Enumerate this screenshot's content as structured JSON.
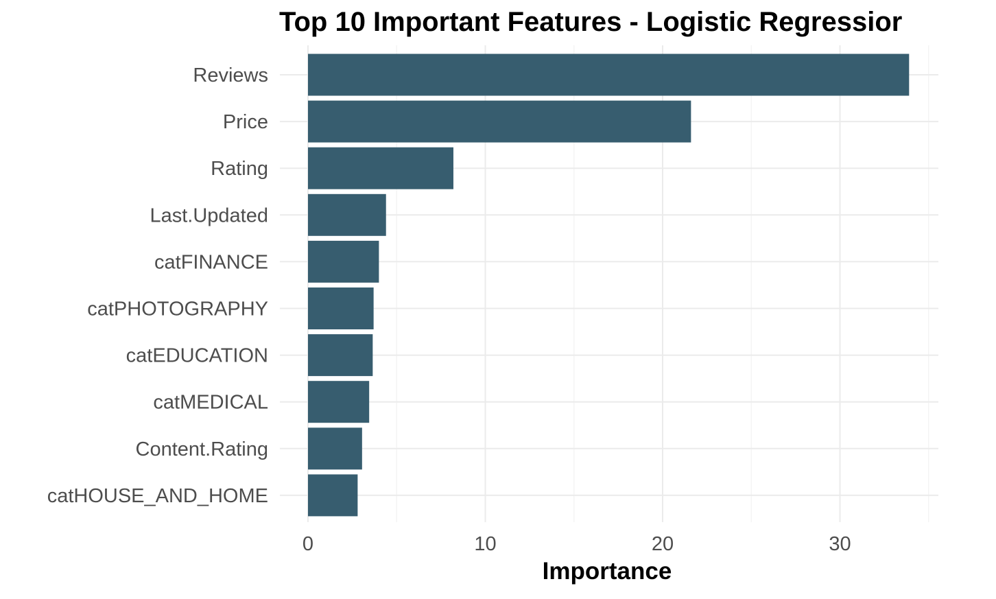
{
  "chart_data": {
    "type": "bar",
    "orientation": "horizontal",
    "title": "Top 10 Important Features - Logistic Regressior",
    "xlabel": "Importance",
    "ylabel": "",
    "categories": [
      "Reviews",
      "Price",
      "Rating",
      "Last.Updated",
      "catFINANCE",
      "catPHOTOGRAPHY",
      "catEDUCATION",
      "catMEDICAL",
      "Content.Rating",
      "catHOUSE_AND_HOME"
    ],
    "values": [
      33.9,
      21.6,
      8.2,
      4.4,
      4.0,
      3.7,
      3.65,
      3.45,
      3.05,
      2.8
    ],
    "xlim": [
      0,
      35.5
    ],
    "xticks": [
      0,
      10,
      20,
      30
    ],
    "xtick_labels": [
      "0",
      "10",
      "20",
      "30"
    ],
    "grid": true,
    "legend": false,
    "bar_color": "#375d6f"
  }
}
